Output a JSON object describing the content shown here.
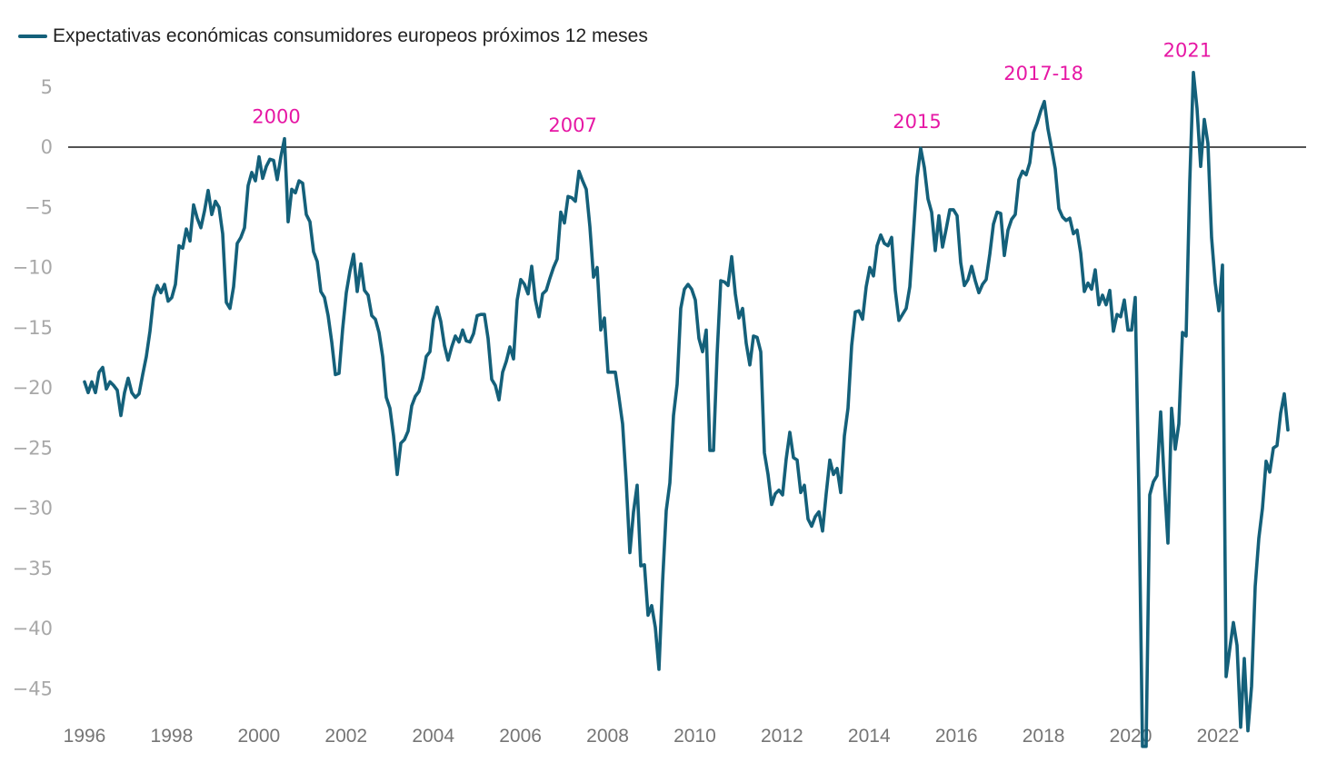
{
  "chart_data": {
    "type": "line",
    "title": "",
    "xlabel": "",
    "ylabel": "",
    "legend": {
      "position": "top-left",
      "entries": [
        {
          "label": "Expectativas económicas consumidores europeos próximos 12 meses",
          "color": "#14607a"
        }
      ]
    },
    "xlim": [
      1996,
      2023.6
    ],
    "ylim": [
      -48,
      6.5
    ],
    "x_ticks": [
      1996,
      1998,
      2000,
      2002,
      2004,
      2006,
      2008,
      2010,
      2012,
      2014,
      2016,
      2018,
      2020,
      2022
    ],
    "x_tick_labels": [
      "1996",
      "1998",
      "2000",
      "2002",
      "2004",
      "2006",
      "2008",
      "2010",
      "2012",
      "2014",
      "2016",
      "2018",
      "2020",
      "2022"
    ],
    "y_ticks": [
      5,
      0,
      -5,
      -10,
      -15,
      -20,
      -25,
      -30,
      -35,
      -40,
      -45
    ],
    "y_tick_labels": [
      "5",
      "0",
      "−5",
      "−10",
      "−15",
      "−20",
      "−25",
      "−30",
      "−35",
      "−40",
      "−45"
    ],
    "grid": false,
    "reference_line": {
      "y": 0,
      "color": "#1a1a1a"
    },
    "annotations": [
      {
        "text": "2000",
        "x": 2000.4,
        "y": 2.0,
        "color": "#e617a4"
      },
      {
        "text": "2007",
        "x": 2007.2,
        "y": 1.3,
        "color": "#e617a4"
      },
      {
        "text": "2015",
        "x": 2015.1,
        "y": 1.6,
        "color": "#e617a4"
      },
      {
        "text": "2017-18",
        "x": 2018.0,
        "y": 5.6,
        "color": "#e617a4"
      },
      {
        "text": "2021",
        "x": 2021.3,
        "y": 7.5,
        "color": "#e617a4"
      }
    ],
    "series": [
      {
        "name": "Expectativas económicas consumidores europeos próximos 12 meses",
        "color": "#14607a",
        "start": 1996.0,
        "step": 0.0834,
        "values": [
          -19.5,
          -20.4,
          -19.5,
          -20.4,
          -18.7,
          -18.3,
          -20.1,
          -19.5,
          -19.8,
          -20.2,
          -22.3,
          -20.4,
          -19.2,
          -20.4,
          -20.8,
          -20.5,
          -18.9,
          -17.4,
          -15.3,
          -12.5,
          -11.5,
          -12.1,
          -11.4,
          -12.8,
          -12.5,
          -11.4,
          -8.2,
          -8.4,
          -6.8,
          -7.8,
          -4.8,
          -5.9,
          -6.7,
          -5.3,
          -3.6,
          -5.6,
          -4.5,
          -5.0,
          -7.2,
          -12.9,
          -13.4,
          -11.6,
          -8.0,
          -7.5,
          -6.7,
          -3.2,
          -2.1,
          -2.8,
          -0.8,
          -2.6,
          -1.6,
          -1.0,
          -1.1,
          -2.7,
          -0.8,
          0.7,
          -6.2,
          -3.5,
          -3.8,
          -2.8,
          -3.0,
          -5.6,
          -6.2,
          -8.7,
          -9.5,
          -12.0,
          -12.5,
          -14.0,
          -16.2,
          -18.9,
          -18.8,
          -15.1,
          -12.1,
          -10.3,
          -8.9,
          -12.0,
          -9.7,
          -11.9,
          -12.3,
          -14.0,
          -14.3,
          -15.4,
          -17.4,
          -20.8,
          -21.7,
          -24.0,
          -27.2,
          -24.6,
          -24.3,
          -23.6,
          -21.5,
          -20.7,
          -20.3,
          -19.2,
          -17.4,
          -17.0,
          -14.3,
          -13.3,
          -14.5,
          -16.5,
          -17.7,
          -16.6,
          -15.7,
          -16.2,
          -15.2,
          -16.1,
          -16.2,
          -15.5,
          -14.0,
          -13.9,
          -13.9,
          -15.9,
          -19.3,
          -19.8,
          -21.0,
          -18.7,
          -17.8,
          -16.6,
          -17.6,
          -12.7,
          -11.0,
          -11.4,
          -12.2,
          -9.9,
          -12.7,
          -14.1,
          -12.2,
          -11.9,
          -10.9,
          -10.0,
          -9.3,
          -5.4,
          -6.3,
          -4.1,
          -4.2,
          -4.5,
          -2.0,
          -2.8,
          -3.5,
          -6.6,
          -10.8,
          -10.0,
          -15.2,
          -14.2,
          -18.7,
          -18.7,
          -18.7,
          -20.8,
          -23.0,
          -27.8,
          -33.7,
          -30.3,
          -28.1,
          -34.8,
          -34.7,
          -38.9,
          -38.1,
          -39.9,
          -43.4,
          -36.1,
          -30.2,
          -27.9,
          -22.3,
          -19.7,
          -13.4,
          -11.8,
          -11.4,
          -11.8,
          -12.7,
          -15.9,
          -17.0,
          -15.2,
          -25.2,
          -25.2,
          -17.2,
          -11.1,
          -11.2,
          -11.5,
          -9.1,
          -12.2,
          -14.2,
          -13.4,
          -16.3,
          -18.1,
          -15.7,
          -15.8,
          -17.0,
          -25.4,
          -27.2,
          -29.7,
          -28.8,
          -28.5,
          -28.9,
          -25.9,
          -23.7,
          -25.8,
          -26.0,
          -28.7,
          -28.1,
          -30.9,
          -31.5,
          -30.7,
          -30.3,
          -31.9,
          -28.8,
          -26.0,
          -27.2,
          -26.7,
          -28.7,
          -24.0,
          -21.7,
          -16.5,
          -13.7,
          -13.6,
          -14.3,
          -11.6,
          -10.0,
          -10.7,
          -8.2,
          -7.3,
          -8.0,
          -8.2,
          -7.5,
          -11.9,
          -14.4,
          -13.9,
          -13.4,
          -11.6,
          -7.1,
          -2.5,
          -0.1,
          -1.7,
          -4.3,
          -5.4,
          -8.6,
          -5.7,
          -8.3,
          -6.8,
          -5.2,
          -5.2,
          -5.7,
          -9.6,
          -11.5,
          -11.0,
          -9.9,
          -11.1,
          -12.1,
          -11.4,
          -11.0,
          -8.9,
          -6.4,
          -5.4,
          -5.5,
          -9.0,
          -6.9,
          -6.0,
          -5.6,
          -2.7,
          -2.0,
          -2.3,
          -1.3,
          1.2,
          2.0,
          3.0,
          3.8,
          1.5,
          -0.1,
          -1.8,
          -5.1,
          -5.8,
          -6.1,
          -5.9,
          -7.2,
          -6.9,
          -8.8,
          -12.0,
          -11.3,
          -11.8,
          -10.2,
          -13.1,
          -12.3,
          -13.1,
          -11.9,
          -15.3,
          -13.9,
          -14.1,
          -12.7,
          -15.2,
          -15.2,
          -12.5,
          -28.5,
          -49.8,
          -49.8,
          -28.9,
          -27.8,
          -27.3,
          -22.0,
          -27.8,
          -32.9,
          -21.7,
          -25.1,
          -23.0,
          -15.4,
          -15.7,
          -2.9,
          6.2,
          3.2,
          -1.6,
          2.3,
          0.3,
          -7.5,
          -11.3,
          -13.6,
          -9.8,
          -44.0,
          -41.7,
          -39.5,
          -41.4,
          -48.2,
          -42.5,
          -48.5,
          -44.8,
          -36.5,
          -32.5,
          -30.0,
          -26.1,
          -27.0,
          -25.0,
          -24.8,
          -22.1,
          -20.5,
          -23.5
        ]
      }
    ]
  }
}
